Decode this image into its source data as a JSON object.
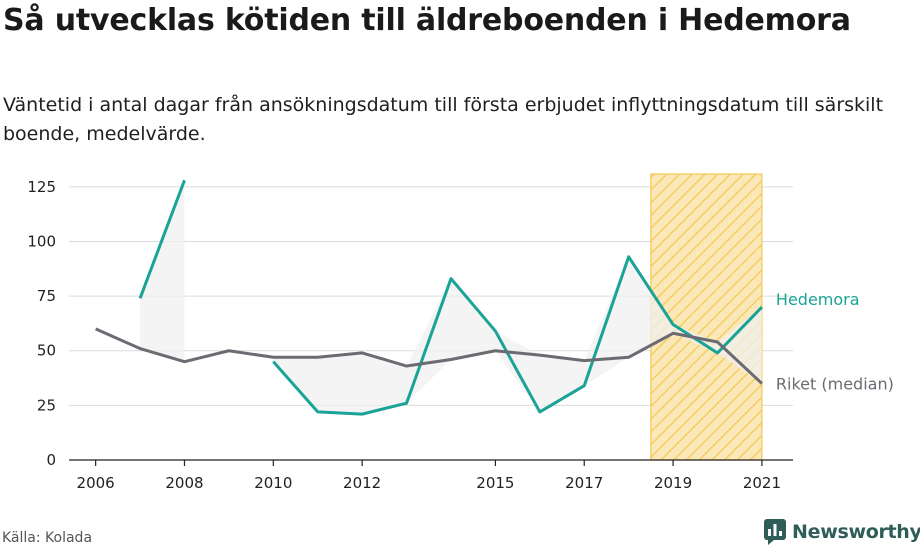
{
  "title": "Så utvecklas kötiden till äldreboenden i Hedemora",
  "subtitle": "Väntetid i antal dagar från ansökningsdatum till första erbjudet inflyttningsdatum till särskilt boende, medelvärde.",
  "source": "Källa: Kolada",
  "brand": "Newsworthy",
  "colors": {
    "hedemora": "#1aa396",
    "riket": "#6b6b72",
    "highlight_fill": "#fbe8b8",
    "highlight_stripe": "#f5c74f",
    "band": "#f0f0f0"
  },
  "chart_data": {
    "type": "line",
    "x": [
      2006,
      2007,
      2008,
      2009,
      2010,
      2011,
      2012,
      2013,
      2014,
      2015,
      2016,
      2017,
      2018,
      2019,
      2020,
      2021
    ],
    "x_ticks": [
      2006,
      2008,
      2010,
      2012,
      2015,
      2017,
      2019,
      2021
    ],
    "y_ticks": [
      0,
      25,
      50,
      75,
      100,
      125
    ],
    "ylim": [
      0,
      135
    ],
    "xlim": [
      2005.4,
      2021.7
    ],
    "grid": true,
    "highlight_range": [
      2018.5,
      2021
    ],
    "series": [
      {
        "name": "Hedemora",
        "values": [
          null,
          74,
          128,
          null,
          45,
          22,
          21,
          26,
          83,
          59,
          22,
          34,
          93,
          62,
          49,
          70
        ]
      },
      {
        "name": "Riket (median)",
        "values": [
          60,
          51,
          45,
          50,
          47,
          47,
          49,
          43,
          46,
          50,
          48,
          45.5,
          47,
          58,
          54,
          35
        ]
      }
    ]
  }
}
